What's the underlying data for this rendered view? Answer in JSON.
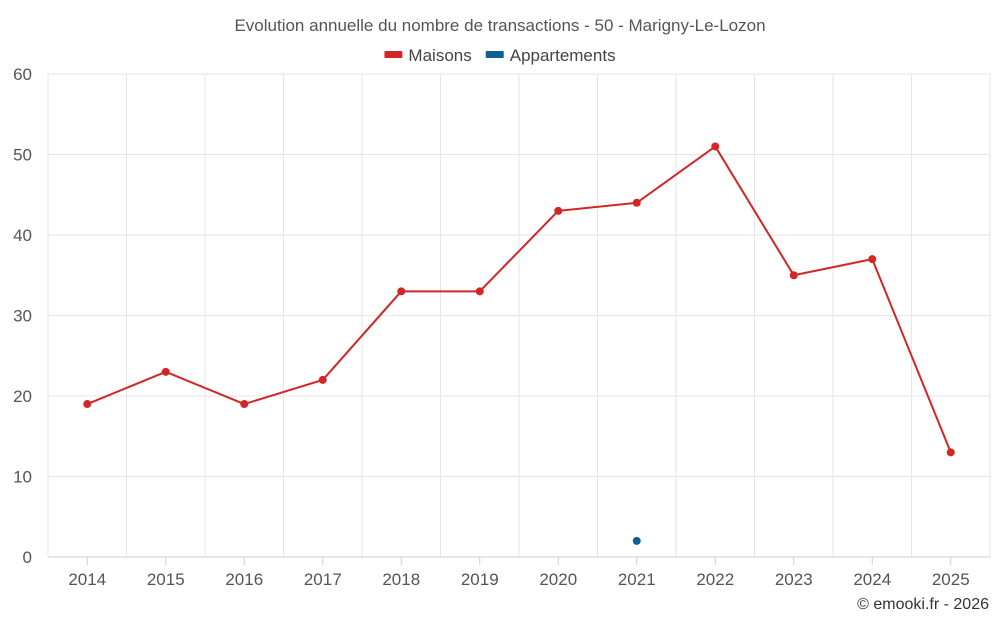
{
  "chart_data": {
    "type": "line",
    "title": "Evolution annuelle du nombre de transactions - 50 - Marigny-Le-Lozon",
    "categories": [
      "2014",
      "2015",
      "2016",
      "2017",
      "2018",
      "2019",
      "2020",
      "2021",
      "2022",
      "2023",
      "2024",
      "2025"
    ],
    "series": [
      {
        "name": "Maisons",
        "color": "#d32626",
        "values": [
          19,
          23,
          19,
          22,
          33,
          33,
          43,
          44,
          51,
          35,
          37,
          13
        ]
      },
      {
        "name": "Appartements",
        "color": "#0e5f96",
        "values": [
          null,
          null,
          null,
          null,
          null,
          null,
          null,
          2,
          null,
          null,
          null,
          null
        ]
      }
    ],
    "ylim": [
      0,
      60
    ],
    "yticks": [
      0,
      10,
      20,
      30,
      40,
      50,
      60
    ],
    "xlabel": "",
    "ylabel": "",
    "grid": true,
    "legend_position": "top-center"
  },
  "credit": "© emooki.fr - 2026"
}
